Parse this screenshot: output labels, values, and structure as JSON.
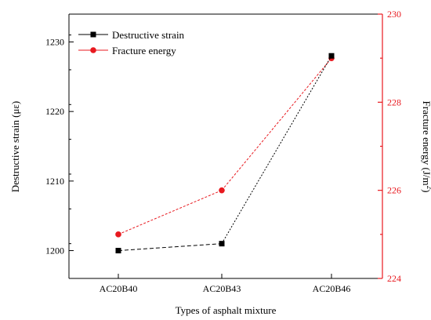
{
  "chart_data": {
    "type": "line",
    "categories": [
      "AC20B40",
      "AC20B43",
      "AC20B46"
    ],
    "xlabel": "Types of asphalt mixture",
    "y_left": {
      "label": "Destructive strain (με)",
      "range": [
        1196,
        1234
      ],
      "ticks": [
        "1200",
        "1210",
        "1220",
        "1230"
      ],
      "tick_values": [
        1200,
        1210,
        1220,
        1230
      ]
    },
    "y_right": {
      "label_main": "Fracture energy (J/m",
      "label_sup": "2",
      "label_end": ")",
      "range": [
        224,
        230
      ],
      "ticks": [
        "224",
        "226",
        "228",
        "230"
      ],
      "tick_values": [
        224,
        226,
        228,
        230
      ],
      "color": "#e8191f"
    },
    "series": [
      {
        "name": "Destructive strain",
        "axis": "left",
        "values": [
          1200,
          1201,
          1228
        ],
        "color": "#000000",
        "marker": "square",
        "line_style": "dashed"
      },
      {
        "name": "Fracture energy",
        "axis": "right",
        "values": [
          225,
          226,
          229
        ],
        "color": "#e8191f",
        "marker": "circle",
        "line_style": "dashed"
      }
    ],
    "legend_position": "top-left",
    "grid": false
  }
}
